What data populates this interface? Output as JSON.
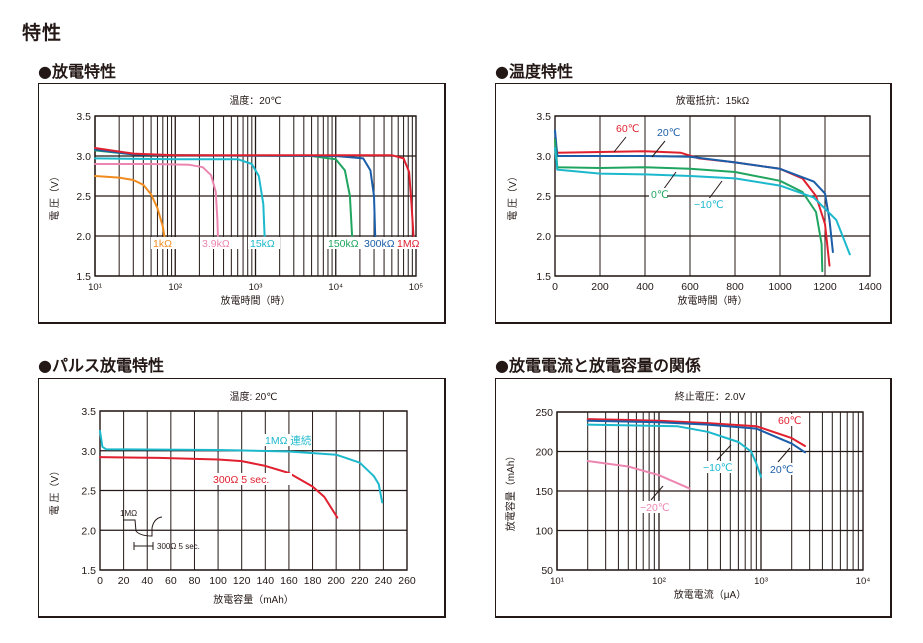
{
  "page": {
    "title": "特性"
  },
  "sections": [
    {
      "title": "●放電特性"
    },
    {
      "title": "●温度特性"
    },
    {
      "title": "●パルス放電特性"
    },
    {
      "title": "●放電電流と放電容量の関係"
    }
  ],
  "chart_data": [
    {
      "id": "discharge",
      "type": "line",
      "title": "温度：20℃",
      "xlabel": "放電時間（時）",
      "ylabel": "電 圧（V）",
      "xscale": "log",
      "xlim": [
        10,
        100000
      ],
      "ylim": [
        1.5,
        3.5
      ],
      "xticks": [
        "10¹",
        "10²",
        "10³",
        "10⁴",
        "10⁵"
      ],
      "yticks": [
        "1.5",
        "2.0",
        "2.5",
        "3.0",
        "3.5"
      ],
      "grid": true,
      "series": [
        {
          "name": "1kΩ",
          "color": "#f08c1e",
          "points": [
            [
              10,
              2.75
            ],
            [
              20,
              2.73
            ],
            [
              30,
              2.7
            ],
            [
              40,
              2.64
            ],
            [
              50,
              2.52
            ],
            [
              60,
              2.35
            ],
            [
              70,
              2.12
            ],
            [
              73,
              2.0
            ]
          ]
        },
        {
          "name": "3.9kΩ",
          "color": "#ec86b0",
          "points": [
            [
              10,
              2.9
            ],
            [
              50,
              2.9
            ],
            [
              150,
              2.89
            ],
            [
              220,
              2.86
            ],
            [
              280,
              2.76
            ],
            [
              320,
              2.55
            ],
            [
              335,
              2.2
            ],
            [
              340,
              2.0
            ]
          ]
        },
        {
          "name": "15kΩ",
          "color": "#1cb8cc",
          "points": [
            [
              10,
              2.97
            ],
            [
              100,
              2.96
            ],
            [
              600,
              2.96
            ],
            [
              900,
              2.9
            ],
            [
              1100,
              2.75
            ],
            [
              1250,
              2.4
            ],
            [
              1300,
              2.0
            ]
          ]
        },
        {
          "name": "150kΩ",
          "color": "#1fa55f",
          "points": [
            [
              10,
              3.07
            ],
            [
              30,
              3.02
            ],
            [
              100,
              3.01
            ],
            [
              5000,
              3.0
            ],
            [
              10000,
              2.96
            ],
            [
              13000,
              2.82
            ],
            [
              15000,
              2.5
            ],
            [
              16000,
              2.0
            ]
          ]
        },
        {
          "name": "300kΩ",
          "color": "#1a5da8",
          "points": [
            [
              10,
              3.08
            ],
            [
              30,
              3.02
            ],
            [
              100,
              3.01
            ],
            [
              10000,
              3.0
            ],
            [
              22000,
              2.97
            ],
            [
              27000,
              2.82
            ],
            [
              30000,
              2.5
            ],
            [
              31000,
              2.0
            ]
          ]
        },
        {
          "name": "1MΩ",
          "color": "#e0202e",
          "points": [
            [
              10,
              3.1
            ],
            [
              30,
              3.03
            ],
            [
              100,
              3.01
            ],
            [
              50000,
              3.01
            ],
            [
              70000,
              2.97
            ],
            [
              82000,
              2.8
            ],
            [
              88000,
              2.4
            ],
            [
              93000,
              2.0
            ]
          ]
        }
      ]
    },
    {
      "id": "temperature",
      "type": "line",
      "title": "放電抵抗：15kΩ",
      "xlabel": "放電時間（時）",
      "ylabel": "電 圧（V）",
      "xlim": [
        0,
        1400
      ],
      "ylim": [
        1.5,
        3.5
      ],
      "xticks": [
        "0",
        "200",
        "400",
        "600",
        "800",
        "1000",
        "1200",
        "1400"
      ],
      "yticks": [
        "1.5",
        "2.0",
        "2.5",
        "3.0",
        "3.5"
      ],
      "grid": true,
      "series": [
        {
          "name": "60℃",
          "color": "#e0202e",
          "points": [
            [
              0,
              3.2
            ],
            [
              10,
              3.04
            ],
            [
              200,
              3.05
            ],
            [
              400,
              3.06
            ],
            [
              560,
              3.04
            ],
            [
              640,
              2.97
            ],
            [
              800,
              2.92
            ],
            [
              1000,
              2.84
            ],
            [
              1100,
              2.72
            ],
            [
              1160,
              2.5
            ],
            [
              1200,
              2.15
            ],
            [
              1220,
              1.63
            ]
          ]
        },
        {
          "name": "20℃",
          "color": "#1a5da8",
          "points": [
            [
              0,
              3.32
            ],
            [
              10,
              3.0
            ],
            [
              400,
              3.0
            ],
            [
              600,
              2.99
            ],
            [
              800,
              2.92
            ],
            [
              1000,
              2.84
            ],
            [
              1150,
              2.68
            ],
            [
              1200,
              2.53
            ],
            [
              1220,
              2.2
            ],
            [
              1235,
              1.8
            ]
          ]
        },
        {
          "name": "0℃",
          "color": "#1fa55f",
          "points": [
            [
              0,
              3.2
            ],
            [
              10,
              2.86
            ],
            [
              200,
              2.85
            ],
            [
              400,
              2.86
            ],
            [
              600,
              2.84
            ],
            [
              800,
              2.8
            ],
            [
              1000,
              2.69
            ],
            [
              1100,
              2.55
            ],
            [
              1160,
              2.3
            ],
            [
              1185,
              1.9
            ],
            [
              1188,
              1.56
            ]
          ]
        },
        {
          "name": "−10℃",
          "color": "#1cb8cc",
          "points": [
            [
              0,
              3.1
            ],
            [
              10,
              2.83
            ],
            [
              200,
              2.78
            ],
            [
              400,
              2.77
            ],
            [
              600,
              2.75
            ],
            [
              800,
              2.72
            ],
            [
              1000,
              2.63
            ],
            [
              1150,
              2.48
            ],
            [
              1250,
              2.2
            ],
            [
              1310,
              1.77
            ]
          ]
        }
      ]
    },
    {
      "id": "pulse",
      "type": "line",
      "title": "温度: 20℃",
      "xlabel": "放電容量（mAh）",
      "ylabel": "電 圧（V）",
      "xlim": [
        0,
        260
      ],
      "ylim": [
        1.5,
        3.5
      ],
      "xticks": [
        "0",
        "20",
        "40",
        "60",
        "80",
        "100",
        "120",
        "140",
        "160",
        "180",
        "200",
        "220",
        "240",
        "260"
      ],
      "yticks": [
        "1.5",
        "2.0",
        "2.5",
        "3.0",
        "3.5"
      ],
      "grid": true,
      "inset": {
        "label_top": "1MΩ",
        "label_bottom": "300Ω 5 sec."
      },
      "series": [
        {
          "name": "1MΩ 連続",
          "color": "#1cb8cc",
          "points": [
            [
              0,
              3.25
            ],
            [
              2,
              3.05
            ],
            [
              5,
              3.02
            ],
            [
              100,
              3.01
            ],
            [
              160,
              2.99
            ],
            [
              200,
              2.95
            ],
            [
              220,
              2.85
            ],
            [
              232,
              2.68
            ],
            [
              236,
              2.58
            ],
            [
              239,
              2.35
            ]
          ]
        },
        {
          "name": "300Ω 5 sec.",
          "color": "#e0202e",
          "points": [
            [
              0,
              2.92
            ],
            [
              50,
              2.91
            ],
            [
              100,
              2.89
            ],
            [
              120,
              2.87
            ],
            [
              140,
              2.81
            ],
            [
              160,
              2.72
            ],
            [
              180,
              2.55
            ],
            [
              190,
              2.42
            ],
            [
              201,
              2.16
            ]
          ]
        }
      ]
    },
    {
      "id": "current-capacity",
      "type": "line",
      "title": "終止電圧：2.0V",
      "xlabel": "放電電流（μA）",
      "ylabel": "放電容量（mAh）",
      "xscale": "log",
      "xlim": [
        10,
        10000
      ],
      "ylim": [
        50,
        250
      ],
      "xticks": [
        "10¹",
        "10²",
        "10³",
        "10⁴"
      ],
      "yticks": [
        "50",
        "100",
        "150",
        "200",
        "250"
      ],
      "grid": true,
      "series": [
        {
          "name": "60℃",
          "color": "#e0202e",
          "points": [
            [
              20,
              241
            ],
            [
              100,
              239
            ],
            [
              300,
              236
            ],
            [
              900,
              232
            ],
            [
              2000,
              217
            ],
            [
              2700,
              207
            ]
          ]
        },
        {
          "name": "20℃",
          "color": "#1a5da8",
          "points": [
            [
              20,
              239
            ],
            [
              100,
              237
            ],
            [
              300,
              234
            ],
            [
              900,
              229
            ],
            [
              2000,
              210
            ],
            [
              2700,
              199
            ]
          ]
        },
        {
          "name": "−10℃",
          "color": "#1cb8cc",
          "points": [
            [
              20,
              234
            ],
            [
              150,
              232
            ],
            [
              300,
              225
            ],
            [
              600,
              212
            ],
            [
              800,
              200
            ],
            [
              900,
              185
            ],
            [
              1000,
              168
            ]
          ]
        },
        {
          "name": "−20℃",
          "color": "#ec86b0",
          "points": [
            [
              20,
              188
            ],
            [
              50,
              181
            ],
            [
              100,
              170
            ],
            [
              200,
              153
            ]
          ]
        }
      ]
    }
  ]
}
